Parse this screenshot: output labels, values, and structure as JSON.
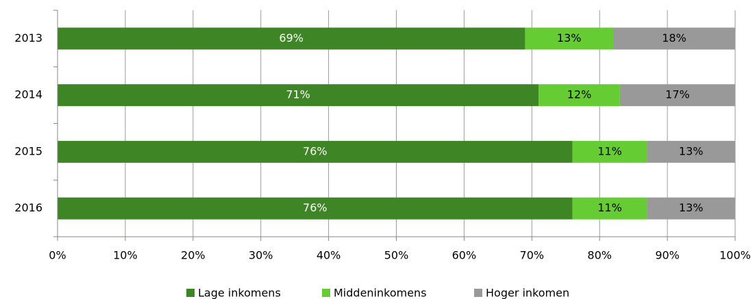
{
  "chart_data": {
    "type": "stacked-bar-horizontal",
    "categories": [
      "2013",
      "2014",
      "2015",
      "2016"
    ],
    "series": [
      {
        "name": "Lage inkomens",
        "color": "#3e8525",
        "values": [
          69,
          71,
          76,
          76
        ],
        "value_labels": [
          "69%",
          "71%",
          "76%",
          "76%"
        ],
        "label_color": "#ffffff"
      },
      {
        "name": "Middeninkomens",
        "color": "#66cc33",
        "values": [
          13,
          12,
          11,
          11
        ],
        "value_labels": [
          "13%",
          "12%",
          "11%",
          "11%"
        ],
        "label_color": "#000000"
      },
      {
        "name": "Hoger inkomen",
        "color": "#999999",
        "values": [
          18,
          17,
          13,
          13
        ],
        "value_labels": [
          "18%",
          "17%",
          "13%",
          "13%"
        ],
        "label_color": "#000000"
      }
    ],
    "xlim": [
      0,
      100
    ],
    "xticks": [
      {
        "value": 0,
        "label": "0%"
      },
      {
        "value": 10,
        "label": "10%"
      },
      {
        "value": 20,
        "label": "20%"
      },
      {
        "value": 30,
        "label": "30%"
      },
      {
        "value": 40,
        "label": "40%"
      },
      {
        "value": 50,
        "label": "50%"
      },
      {
        "value": 60,
        "label": "60%"
      },
      {
        "value": 70,
        "label": "70%"
      },
      {
        "value": 80,
        "label": "80%"
      },
      {
        "value": 90,
        "label": "90%"
      },
      {
        "value": 100,
        "label": "100%"
      }
    ],
    "grid": true,
    "legend": "bottom"
  }
}
